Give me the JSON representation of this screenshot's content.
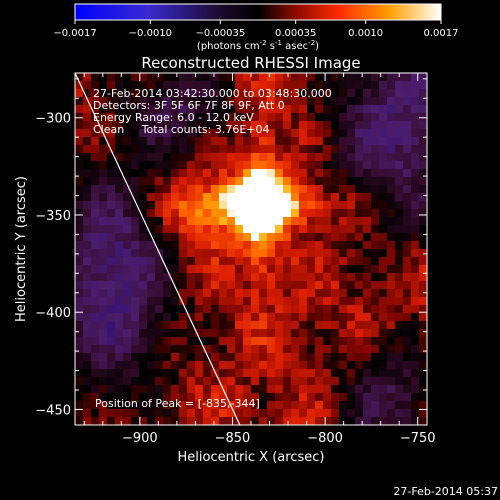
{
  "colorbar": {
    "colors": [
      "#0000ff",
      "#5a2d9a",
      "#000000",
      "#ff3300",
      "#ffaa00",
      "#ffffff"
    ],
    "ticks": [
      {
        "value": -0.0017,
        "label": "-0.0017"
      },
      {
        "value": -0.001,
        "label": "-0.0010"
      },
      {
        "value": -0.00035,
        "label": "-0.00035"
      },
      {
        "value": 0.00035,
        "label": "0.00035"
      },
      {
        "value": 0.001,
        "label": "0.0010"
      },
      {
        "value": 0.0017,
        "label": "0.0017"
      }
    ],
    "range": [
      -0.0017,
      0.0017
    ],
    "units_base": "(photons cm",
    "units_exp1": "-2",
    "units_mid1": " s",
    "units_exp2": "-1",
    "units_mid2": " asec",
    "units_exp3": "-2",
    "units_end": ")"
  },
  "chart_data": {
    "type": "heatmap",
    "title": "Reconstructed RHESSI Image",
    "xlabel": "Heliocentric X (arcsec)",
    "ylabel": "Heliocentric Y (arcsec)",
    "xlim": [
      -935,
      -745
    ],
    "ylim": [
      -458,
      -277
    ],
    "x_ticks": [
      -900,
      -850,
      -800,
      -750
    ],
    "y_ticks": [
      -300,
      -350,
      -400,
      -450
    ],
    "x_tick_labels": [
      "-900",
      "-850",
      "-800",
      "-750"
    ],
    "y_tick_labels": [
      "-300",
      "-350",
      "-400",
      "-450"
    ],
    "peak": {
      "x": -835,
      "y": -344
    },
    "limb_line": [
      {
        "x": -935,
        "y": -277
      },
      {
        "x": -846,
        "y": -458
      }
    ],
    "annotations": [
      "27-Feb-2014 03:42:30.000 to 03:48:30.000",
      "Detectors: 3F 5F 6F 7F 8F 9F, Att 0",
      "Energy Range: 6.0 - 12.0 keV",
      "Clean     Total counts: 3.76E+04"
    ],
    "peak_label": "Position of Peak = [-835,-344]"
  },
  "footer": {
    "timestamp": "27-Feb-2014 05:37"
  }
}
